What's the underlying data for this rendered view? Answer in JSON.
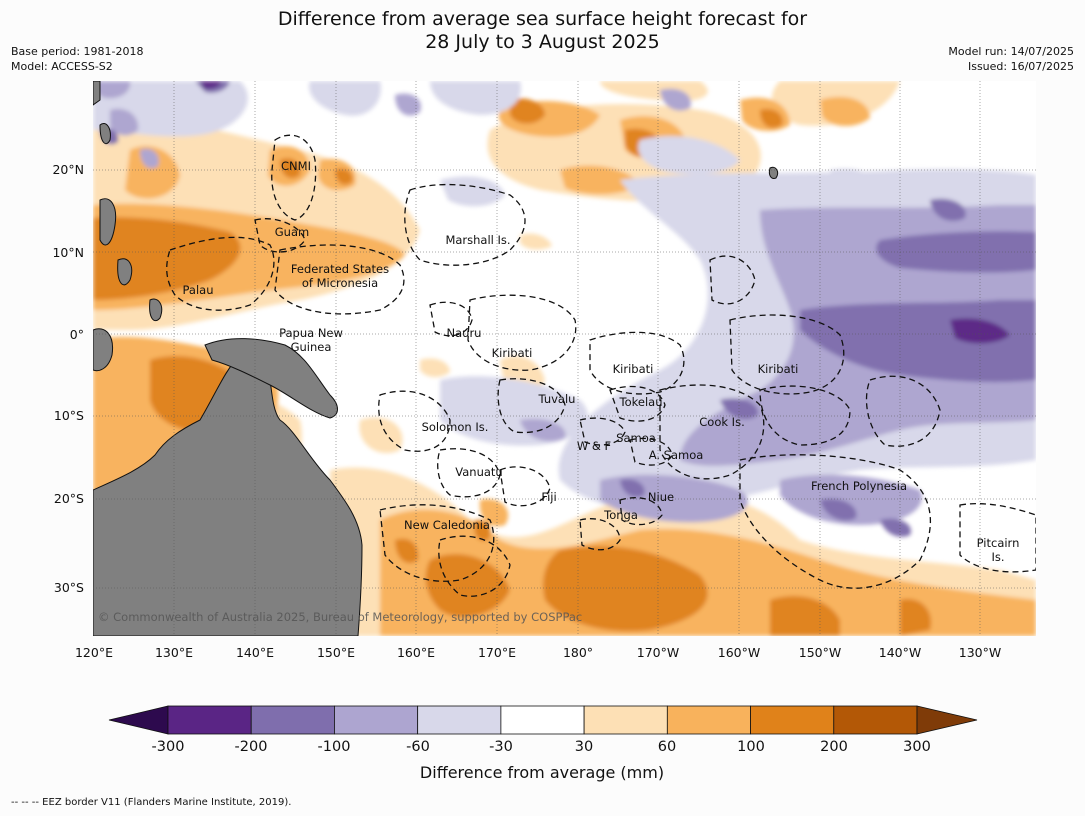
{
  "title_line1": "Difference from average sea surface height forecast for",
  "title_line2": "28 July to 3 August 2025",
  "base_period": "Base period: 1981-2018",
  "model": "Model: ACCESS-S2",
  "model_run": "Model run: 14/07/2025",
  "issued": "Issued: 16/07/2025",
  "copyright": "© Commonwealth of Australia 2025, Bureau of Meteorology, supported by COSPPac",
  "lon_labels": [
    "120°E",
    "130°E",
    "140°E",
    "150°E",
    "160°E",
    "170°E",
    "180°",
    "170°W",
    "160°W",
    "150°W",
    "140°W",
    "130°W"
  ],
  "lat_labels": [
    "20°N",
    "10°N",
    "0°",
    "10°S",
    "20°S",
    "30°S"
  ],
  "regions": [
    "CNMI",
    "Guam",
    "Marshall Is.",
    "Federated States",
    "of Micronesia",
    "Palau",
    "Papua New",
    "Guinea",
    "Nauru",
    "Kiribati",
    "Kiribati",
    "Kiribati",
    "Tuvalu",
    "Tokelau",
    "Solomon Is.",
    "W & F",
    "Samoa",
    "A. Samoa",
    "Cook Is.",
    "Vanuatu",
    "Fiji",
    "Niue",
    "French Polynesia",
    "Tonga",
    "New Caledonia",
    "Pitcairn",
    "Is."
  ],
  "colorbar": {
    "label": "Difference from average (mm)",
    "ticks": [
      "-300",
      "-200",
      "-100",
      "-60",
      "-30",
      "30",
      "60",
      "100",
      "200",
      "300"
    ],
    "colors": [
      "#2d0a4e",
      "#5a2585",
      "#7f6ead",
      "#ada5d0",
      "#d8d8ea",
      "#ffffff",
      "#fde0b5",
      "#f8b25c",
      "#e0821a",
      "#b35806",
      "#7f3b08"
    ]
  },
  "footer": "--  --  -- EEZ border V11 (Flanders Marine Institute, 2019)."
}
